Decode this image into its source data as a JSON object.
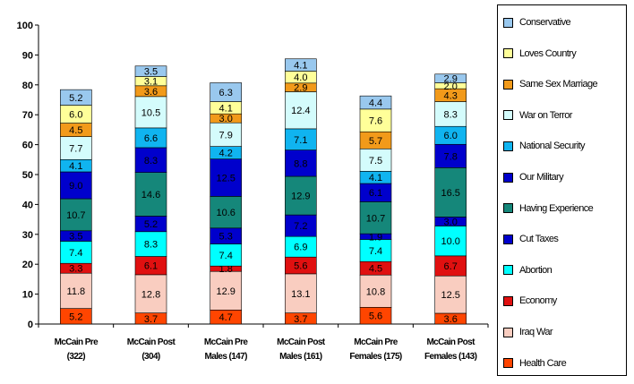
{
  "chart_data": {
    "type": "bar",
    "stacked": true,
    "ylim": [
      0,
      100
    ],
    "yticks": [
      0,
      10,
      20,
      30,
      40,
      50,
      60,
      70,
      80,
      90,
      100
    ],
    "gridlines": false,
    "legend_position": "right",
    "categories": [
      [
        "McCain Pre",
        "(322)"
      ],
      [
        "McCain Post",
        "(304)"
      ],
      [
        "McCain Pre",
        "Males (147)"
      ],
      [
        "McCain Post",
        "Males (161)"
      ],
      [
        "McCain Pre",
        "Females (175)"
      ],
      [
        "McCain Post",
        "Females (143)"
      ]
    ],
    "series": [
      {
        "name": "Health Care",
        "color": "#FF4500",
        "values": [
          5.2,
          3.7,
          4.7,
          3.7,
          5.6,
          3.6
        ]
      },
      {
        "name": "Iraq War",
        "color": "#F9CDC0",
        "values": [
          11.8,
          12.8,
          12.9,
          13.1,
          10.8,
          12.5
        ]
      },
      {
        "name": "Economy",
        "color": "#E01010",
        "values": [
          3.3,
          6.1,
          1.8,
          5.6,
          4.5,
          6.7
        ]
      },
      {
        "name": "Abortion",
        "color": "#00FFFF",
        "values": [
          7.4,
          8.3,
          7.4,
          6.9,
          7.4,
          10.0
        ]
      },
      {
        "name": "Cut Taxes",
        "color": "#0000CC",
        "values": [
          3.5,
          5.2,
          5.3,
          7.2,
          1.9,
          3.0
        ]
      },
      {
        "name": "Having Experience",
        "color": "#15877A",
        "values": [
          10.7,
          14.6,
          10.6,
          12.9,
          10.7,
          16.5
        ]
      },
      {
        "name": "Our Military",
        "color": "#0000CC",
        "values": [
          9.0,
          8.3,
          12.5,
          8.8,
          6.1,
          7.8
        ]
      },
      {
        "name": "National Security",
        "color": "#10B4F0",
        "values": [
          4.1,
          6.6,
          4.2,
          7.1,
          4.1,
          6.0
        ]
      },
      {
        "name": "War on Terror",
        "color": "#D4FCFC",
        "values": [
          7.7,
          10.5,
          7.9,
          12.4,
          7.5,
          8.3
        ]
      },
      {
        "name": "Same Sex Marriage",
        "color": "#F29A1A",
        "values": [
          4.5,
          3.6,
          3.0,
          2.9,
          5.7,
          4.3
        ]
      },
      {
        "name": "Loves Country",
        "color": "#FFFF99",
        "values": [
          6.0,
          3.1,
          4.1,
          4.0,
          7.6,
          2.0
        ]
      },
      {
        "name": "Conservative",
        "color": "#99C8EE",
        "values": [
          5.2,
          3.5,
          6.3,
          4.1,
          4.4,
          2.9
        ]
      }
    ]
  }
}
